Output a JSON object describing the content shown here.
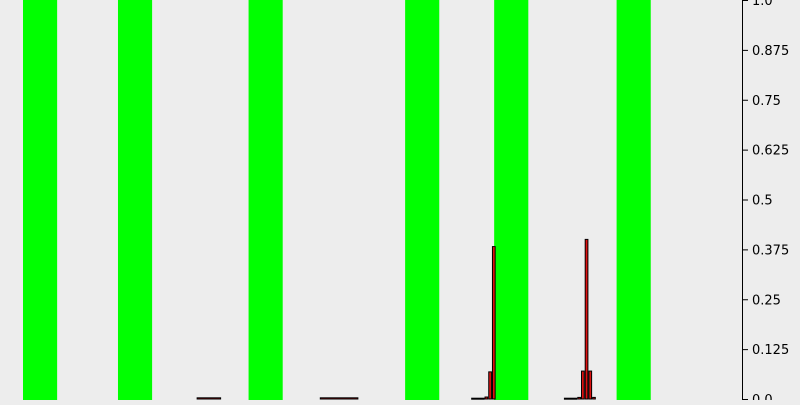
{
  "chart_data": {
    "type": "bar",
    "title": "",
    "xlabel": "",
    "ylabel": "",
    "ylim": [
      0,
      1
    ],
    "y_axis_side": "right",
    "y_ticks": [
      "0.0",
      "0.125",
      "0.25",
      "0.375",
      "0.5",
      "0.625",
      "0.75",
      "0.875",
      "1.0"
    ],
    "grid": false,
    "legend": "none",
    "highlight_color": "#00ff00",
    "bar_color": "#dd1111",
    "highlight_bands": [
      {
        "x_start": 0.031,
        "x_end": 0.077
      },
      {
        "x_start": 0.159,
        "x_end": 0.205
      },
      {
        "x_start": 0.335,
        "x_end": 0.381
      },
      {
        "x_start": 0.546,
        "x_end": 0.592
      },
      {
        "x_start": 0.666,
        "x_end": 0.712
      },
      {
        "x_start": 0.831,
        "x_end": 0.877
      }
    ],
    "bars": [
      {
        "x_start": 0.265,
        "x_end": 0.298,
        "value": 0.003
      },
      {
        "x_start": 0.431,
        "x_end": 0.483,
        "value": 0.003
      },
      {
        "x_start": 0.635,
        "x_end": 0.653,
        "value": 0.002
      },
      {
        "x_start": 0.653,
        "x_end": 0.658,
        "value": 0.005
      },
      {
        "x_start": 0.658,
        "x_end": 0.663,
        "value": 0.068
      },
      {
        "x_start": 0.663,
        "x_end": 0.668,
        "value": 0.382
      },
      {
        "x_start": 0.76,
        "x_end": 0.778,
        "value": 0.002
      },
      {
        "x_start": 0.778,
        "x_end": 0.783,
        "value": 0.004
      },
      {
        "x_start": 0.783,
        "x_end": 0.788,
        "value": 0.07
      },
      {
        "x_start": 0.788,
        "x_end": 0.793,
        "value": 0.4
      },
      {
        "x_start": 0.793,
        "x_end": 0.798,
        "value": 0.07
      },
      {
        "x_start": 0.798,
        "x_end": 0.803,
        "value": 0.004
      }
    ]
  }
}
